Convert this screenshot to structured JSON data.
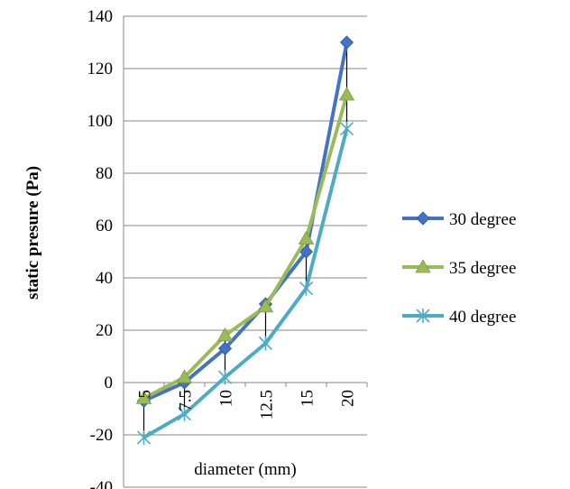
{
  "chart_data": {
    "type": "line",
    "title": "",
    "xlabel": "diameter (mm)",
    "ylabel": "static presure (Pa)",
    "categories": [
      "5",
      "7.5",
      "10",
      "12.5",
      "15",
      "20"
    ],
    "ylim": [
      -40,
      140
    ],
    "yticks": [
      -40,
      -20,
      0,
      20,
      40,
      60,
      80,
      100,
      120,
      140
    ],
    "grid": "horizontal",
    "legend": "right",
    "drop_lines": true,
    "series": [
      {
        "name": "30  degree",
        "color": "#4472c4",
        "marker": "diamond-icon",
        "values": [
          -7,
          0,
          13,
          30,
          50,
          130
        ]
      },
      {
        "name": "35  degree",
        "color": "#9bbb59",
        "marker": "triangle-icon",
        "values": [
          -6,
          2,
          18,
          29,
          55,
          110
        ]
      },
      {
        "name": "40  degree",
        "color": "#4bacc6",
        "marker": "asterisk-icon",
        "values": [
          -21,
          -12,
          2,
          15,
          36,
          97
        ]
      }
    ]
  }
}
